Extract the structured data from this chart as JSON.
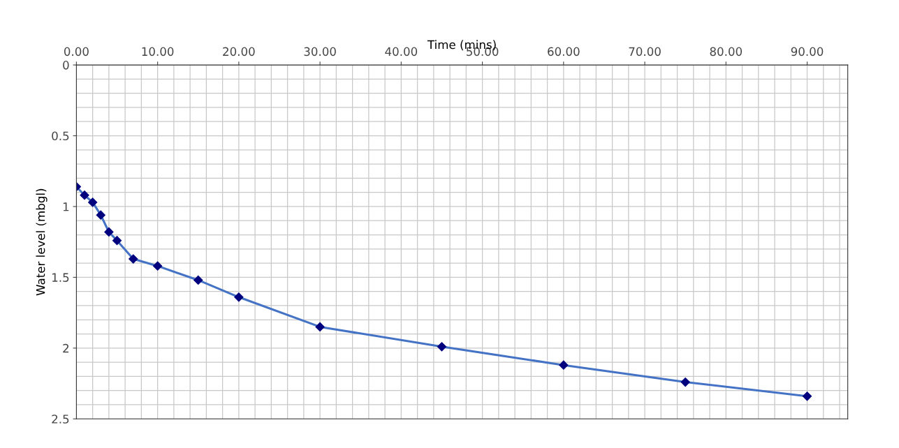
{
  "chart_data": {
    "type": "line",
    "xlabel": "Time (mins)",
    "ylabel": "Water level (mbgl)",
    "x": [
      0,
      1,
      2,
      3,
      4,
      5,
      7,
      10,
      15,
      20,
      30,
      45,
      60,
      75,
      90
    ],
    "series": [
      {
        "color": "#4472c4",
        "values": [
          0.86,
          0.92,
          0.97,
          1.06,
          1.18,
          1.24,
          1.37,
          1.42,
          1.52,
          1.64,
          1.85,
          1.99,
          2.12,
          2.24,
          2.34
        ]
      }
    ],
    "marker": "diamond",
    "line_style": "solid",
    "grid": true,
    "legend": false,
    "xlim": [
      0,
      95
    ],
    "xticks": [
      {
        "value": 0,
        "label": "0.00"
      },
      {
        "value": 10,
        "label": "10.00"
      },
      {
        "value": 20,
        "label": "20.00"
      },
      {
        "value": 30,
        "label": "30.00"
      },
      {
        "value": 40,
        "label": "40.00"
      },
      {
        "value": 50,
        "label": "50.00"
      },
      {
        "value": 60,
        "label": "60.00"
      },
      {
        "value": 70,
        "label": "70.00"
      },
      {
        "value": 80,
        "label": "80.00"
      },
      {
        "value": 90,
        "label": "90.00"
      }
    ],
    "ylim": [
      2.5,
      0
    ],
    "yticks": [
      0,
      0.5,
      1,
      1.5,
      2,
      2.5
    ]
  }
}
